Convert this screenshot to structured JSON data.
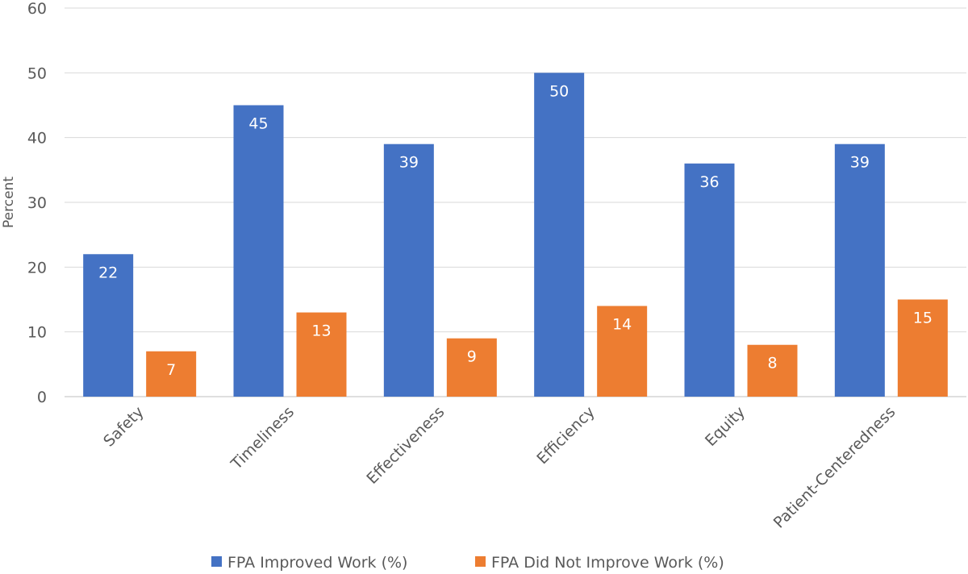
{
  "chart_data": {
    "type": "bar",
    "title": "",
    "xlabel": "",
    "ylabel": "Percent",
    "ylim": [
      0,
      60
    ],
    "yticks": [
      0,
      10,
      20,
      30,
      40,
      50,
      60
    ],
    "grid": true,
    "legend_position": "bottom",
    "categories": [
      "Safety",
      "Timeliness",
      "Effectiveness",
      "Efficiency",
      "Equity",
      "Patient-Centeredness"
    ],
    "series": [
      {
        "name": "FPA Improved Work (%)",
        "color": "#4472C4",
        "values": [
          22,
          45,
          39,
          50,
          36,
          39
        ]
      },
      {
        "name": "FPA Did Not Improve Work (%)",
        "color": "#ED7D31",
        "values": [
          7,
          13,
          9,
          14,
          8,
          15
        ]
      }
    ]
  }
}
